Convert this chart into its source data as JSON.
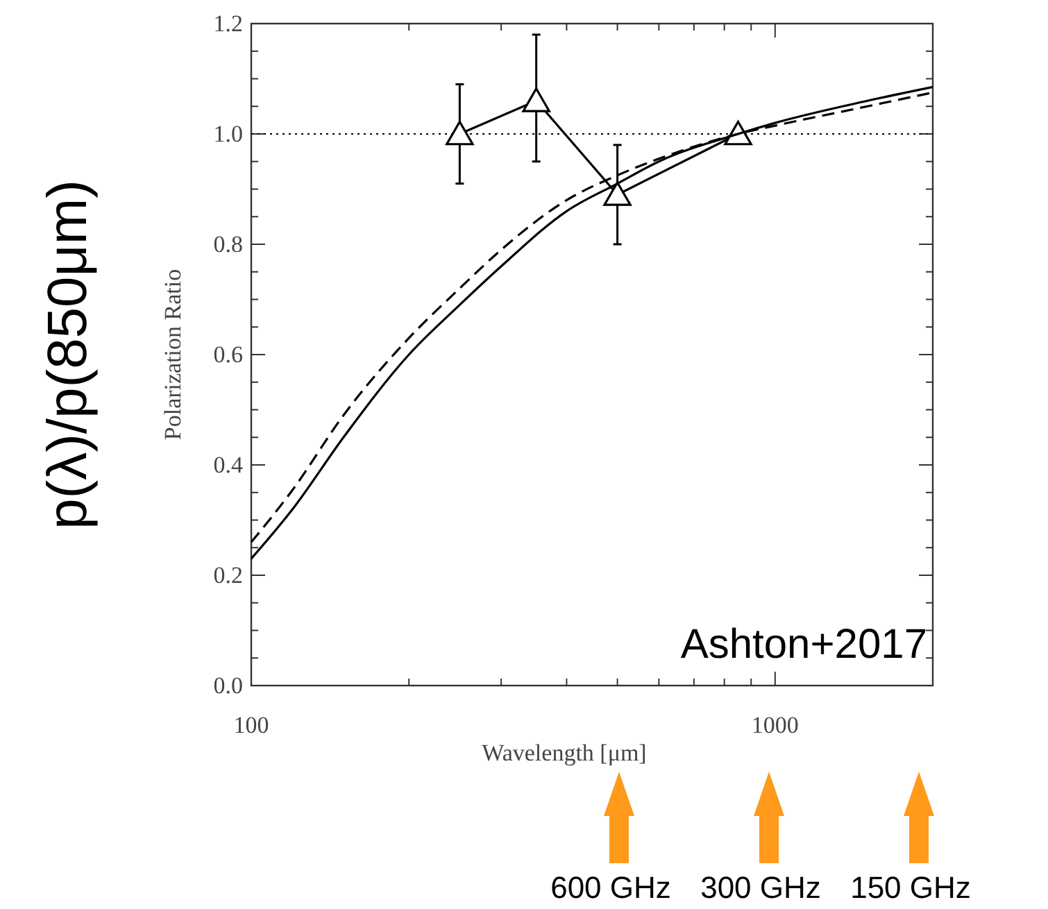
{
  "chart_data": {
    "type": "line",
    "xlabel": "Wavelength [μm]",
    "ylabel": "Polarization Ratio",
    "log": "x",
    "xlim": [
      100,
      2000
    ],
    "xticks": [
      100,
      {
        "value": 200,
        "label": null
      },
      {
        "value": 300,
        "label": null
      },
      {
        "value": 400,
        "label": null
      },
      {
        "value": 500,
        "label": null
      },
      {
        "value": 600,
        "label": null
      },
      {
        "value": 700,
        "label": null
      },
      {
        "value": 800,
        "label": null
      },
      {
        "value": 900,
        "label": null
      },
      1000,
      {
        "value": 2000,
        "label": null
      }
    ],
    "ylim": [
      0,
      1.2
    ],
    "yticks": [
      {
        "value": 0,
        "label": "0.0"
      },
      {
        "value": 0.05,
        "label": null
      },
      {
        "value": 0.1,
        "label": null
      },
      {
        "value": 0.15,
        "label": null
      },
      {
        "value": 0.2,
        "label": "0.2"
      },
      {
        "value": 0.25,
        "label": null
      },
      {
        "value": 0.3,
        "label": null
      },
      {
        "value": 0.35,
        "label": null
      },
      {
        "value": 0.4,
        "label": "0.4"
      },
      {
        "value": 0.45,
        "label": null
      },
      {
        "value": 0.5,
        "label": null
      },
      {
        "value": 0.55,
        "label": null
      },
      {
        "value": 0.6,
        "label": "0.6"
      },
      {
        "value": 0.65,
        "label": null
      },
      {
        "value": 0.7,
        "label": null
      },
      {
        "value": 0.75,
        "label": null
      },
      {
        "value": 0.8,
        "label": "0.8"
      },
      {
        "value": 0.85,
        "label": null
      },
      {
        "value": 0.9,
        "label": null
      },
      {
        "value": 0.95,
        "label": null
      },
      {
        "value": 1,
        "label": "1.0"
      },
      {
        "value": 1.05,
        "label": null
      },
      {
        "value": 1.1,
        "label": null
      },
      {
        "value": 1.15,
        "label": null
      },
      {
        "value": 1.2,
        "label": "1.2"
      }
    ],
    "series": [
      {
        "color": "#000000",
        "x": [
          250,
          350,
          500,
          850
        ],
        "values": [
          1.0,
          1.06,
          0.89,
          1.0
        ],
        "errors": [
          0.09,
          [
            0.95,
            1.18
          ],
          [
            0.8,
            0.98
          ],
          null
        ],
        "marker": "triangle",
        "line_style": "solid"
      },
      {
        "color": "#000000",
        "x": [
          100,
          120,
          150,
          200,
          250,
          300,
          400,
          500,
          600,
          850,
          1000,
          1500,
          2000
        ],
        "values": [
          0.23,
          0.32,
          0.45,
          0.6,
          0.69,
          0.76,
          0.86,
          0.91,
          0.95,
          1.0,
          1.02,
          1.06,
          1.085
        ],
        "marker": "none",
        "line_style": "solid"
      },
      {
        "color": "#000000",
        "x": [
          100,
          120,
          150,
          200,
          250,
          300,
          400,
          500,
          600,
          850,
          1000,
          1500,
          2000
        ],
        "values": [
          0.26,
          0.355,
          0.49,
          0.63,
          0.72,
          0.79,
          0.88,
          0.925,
          0.955,
          1.0,
          1.015,
          1.05,
          1.075
        ],
        "marker": "none",
        "line_style": "dashed"
      }
    ],
    "ref_lines": [
      {
        "axis": "y",
        "value": 1,
        "line_style": "dotted",
        "color": "#000000"
      }
    ],
    "annotations": [
      "p(λ)/p(850μm)",
      "Ashton+2017",
      "600 GHz",
      "300 GHz",
      "150 GHz"
    ]
  }
}
